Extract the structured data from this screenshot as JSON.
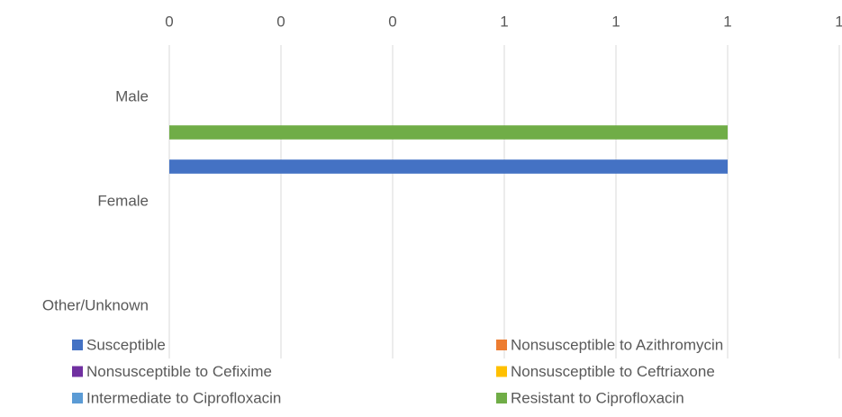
{
  "chart_data": {
    "type": "bar",
    "orientation": "horizontal",
    "categories": [
      "Male",
      "Female",
      "Other/Unknown"
    ],
    "series": [
      {
        "name": "Susceptible",
        "color": "#4472c4",
        "values": [
          0,
          1,
          0
        ]
      },
      {
        "name": "Nonsusceptible to Azithromycin",
        "color": "#ed7d31",
        "values": [
          0,
          0,
          0
        ]
      },
      {
        "name": "Nonsusceptible to Cefixime",
        "color": "#7030a0",
        "values": [
          0,
          0,
          0
        ]
      },
      {
        "name": "Nonsusceptible to Ceftriaxone",
        "color": "#ffc000",
        "values": [
          0,
          0,
          0
        ]
      },
      {
        "name": "Intermediate to Ciprofloxacin",
        "color": "#5b9bd5",
        "values": [
          0,
          0,
          0
        ]
      },
      {
        "name": "Resistant to Ciprofloxacin",
        "color": "#70ad47",
        "values": [
          1,
          0,
          0
        ]
      }
    ],
    "xlim": [
      0,
      1.2
    ],
    "xticks": [
      0,
      {
        "value": 0.2,
        "label": "0"
      },
      {
        "value": 0.4,
        "label": "0"
      },
      {
        "value": 0.6,
        "label": "1"
      },
      {
        "value": 0.8,
        "label": "1"
      },
      1,
      {
        "value": 1.2,
        "label": "1"
      }
    ],
    "grid": true,
    "legend": "bottom"
  }
}
